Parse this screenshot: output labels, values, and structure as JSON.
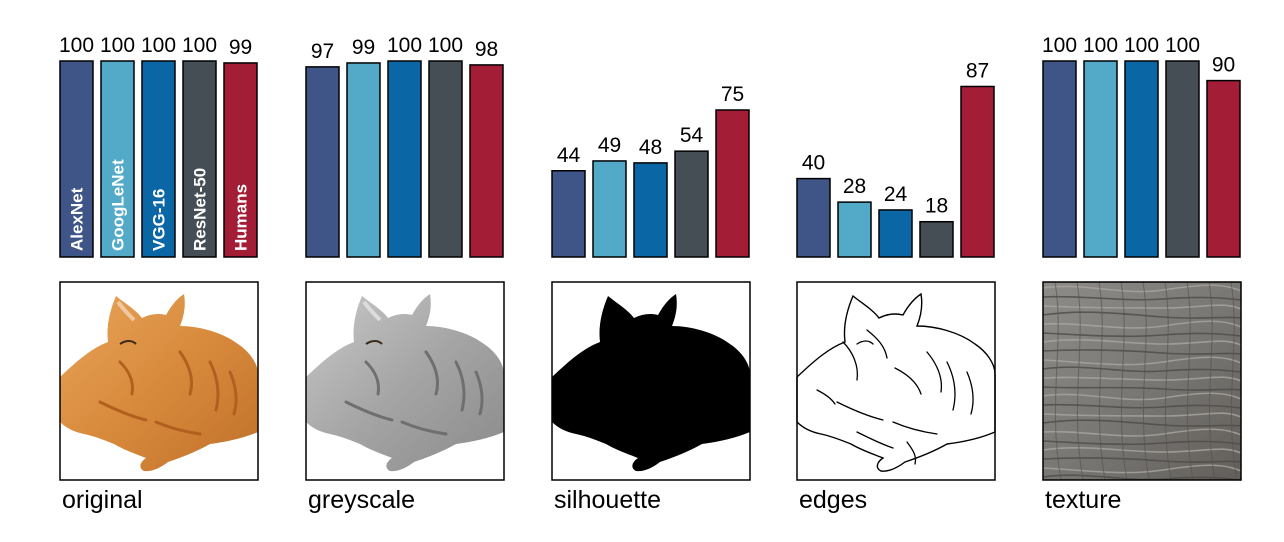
{
  "chart_data": {
    "type": "bar",
    "categories": [
      "AlexNet",
      "GoogLeNet",
      "VGG-16",
      "ResNet-50",
      "Humans"
    ],
    "ylim": [
      0,
      100
    ],
    "grid": false,
    "legend": "none",
    "colors": {
      "AlexNet": "#3f5587",
      "GoogLeNet": "#52aac8",
      "VGG-16": "#0a66a4",
      "ResNet-50": "#454d55",
      "Humans": "#a31d37"
    },
    "panels": [
      {
        "caption": "original",
        "values": [
          100,
          100,
          100,
          100,
          99
        ],
        "image": "cat-photo"
      },
      {
        "caption": "greyscale",
        "values": [
          97,
          99,
          100,
          100,
          98
        ],
        "image": "cat-greyscale"
      },
      {
        "caption": "silhouette",
        "values": [
          44,
          49,
          48,
          54,
          75
        ],
        "image": "cat-silhouette"
      },
      {
        "caption": "edges",
        "values": [
          40,
          28,
          24,
          18,
          87
        ],
        "image": "cat-edges"
      },
      {
        "caption": "texture",
        "values": [
          100,
          100,
          100,
          100,
          90
        ],
        "image": "elephant-skin-texture"
      }
    ]
  }
}
